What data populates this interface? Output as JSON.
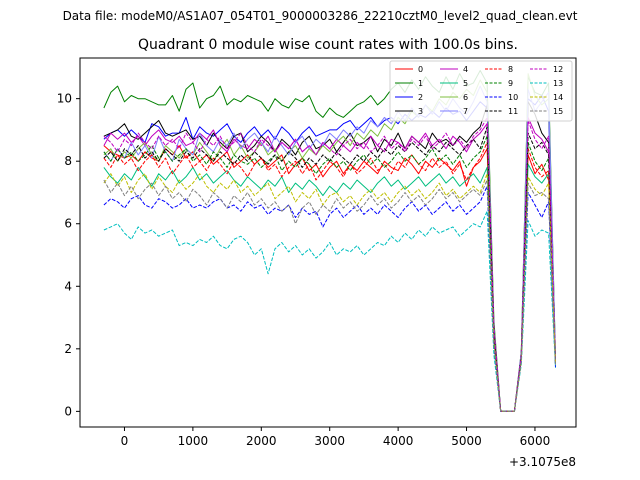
{
  "suptitle": "Data file: modeM0/AS1A07_054T01_9000003286_22210cztM0_level2_quad_clean.evt",
  "chart_data": {
    "type": "line",
    "title": "Quadrant 0 module wise count rates with 100.0s bins.",
    "xlabel": "",
    "ylabel": "",
    "x_offset_label": "+3.1075e8",
    "xlim": [
      -650,
      6600
    ],
    "ylim": [
      -0.5,
      11.3
    ],
    "xticks": [
      0,
      1000,
      2000,
      3000,
      4000,
      5000,
      6000
    ],
    "yticks": [
      0,
      2,
      4,
      6,
      8,
      10
    ],
    "legend_position": "top-right",
    "x": [
      -300,
      -200,
      -100,
      0,
      100,
      200,
      300,
      400,
      500,
      600,
      700,
      800,
      900,
      1000,
      1100,
      1200,
      1300,
      1400,
      1500,
      1600,
      1700,
      1800,
      1900,
      2000,
      2100,
      2200,
      2300,
      2400,
      2500,
      2600,
      2700,
      2800,
      2900,
      3000,
      3100,
      3200,
      3300,
      3400,
      3500,
      3600,
      3700,
      3800,
      3900,
      4000,
      4100,
      4200,
      4300,
      4400,
      4500,
      4600,
      4700,
      4800,
      4900,
      5000,
      5100,
      5200,
      5300,
      5400,
      5500,
      5600,
      5700,
      5800,
      5900,
      6000,
      6100,
      6200,
      6300
    ],
    "series": [
      {
        "name": "0",
        "color": "#ff0000",
        "dash": "solid",
        "values": [
          8.5,
          8.3,
          8.2,
          8.1,
          8.2,
          8.0,
          8.3,
          8.1,
          8.0,
          8.4,
          8.2,
          8.5,
          8.1,
          8.3,
          8.0,
          8.2,
          7.9,
          8.1,
          8.3,
          7.8,
          8.0,
          8.2,
          7.9,
          8.1,
          7.8,
          8.0,
          8.2,
          7.6,
          7.9,
          8.1,
          7.7,
          7.9,
          7.5,
          7.8,
          8.0,
          7.6,
          7.9,
          7.7,
          8.0,
          7.8,
          7.6,
          8.0,
          7.8,
          7.7,
          8.1,
          7.9,
          7.6,
          8.0,
          7.8,
          8.1,
          7.9,
          7.7,
          8.0,
          7.2,
          7.8,
          8.0,
          8.4,
          2.4,
          0.0,
          0.0,
          0.0,
          1.7,
          8.2,
          7.6,
          7.9,
          7.4,
          1.6
        ]
      },
      {
        "name": "1",
        "color": "#008000",
        "dash": "solid",
        "values": [
          9.7,
          10.2,
          10.4,
          9.9,
          10.1,
          10.0,
          10.0,
          9.9,
          9.8,
          9.8,
          10.1,
          9.6,
          10.3,
          10.5,
          9.7,
          10.0,
          10.1,
          10.4,
          9.8,
          10.0,
          9.9,
          10.1,
          10.0,
          9.9,
          9.6,
          10.0,
          9.8,
          9.7,
          10.0,
          9.9,
          10.1,
          9.6,
          9.4,
          9.7,
          9.5,
          9.4,
          9.6,
          9.8,
          9.9,
          10.1,
          9.8,
          10.0,
          10.3,
          10.5,
          10.2,
          10.6,
          10.3,
          10.7,
          10.4,
          10.2,
          10.7,
          10.3,
          10.8,
          10.4,
          10.5,
          10.9,
          10.5,
          2.9,
          0.0,
          0.0,
          0.0,
          1.9,
          10.7,
          10.2,
          10.1,
          10.5,
          1.7
        ]
      },
      {
        "name": "2",
        "color": "#0000ff",
        "dash": "solid",
        "values": [
          8.7,
          8.9,
          9.0,
          8.8,
          9.0,
          8.8,
          8.6,
          9.2,
          9.1,
          8.8,
          8.9,
          8.9,
          9.4,
          8.7,
          9.1,
          8.9,
          8.8,
          9.0,
          9.2,
          8.8,
          8.6,
          8.9,
          9.1,
          8.8,
          9.0,
          8.7,
          9.1,
          8.9,
          8.6,
          8.9,
          9.1,
          8.8,
          8.9,
          9.0,
          9.0,
          9.2,
          9.3,
          9.0,
          9.2,
          9.4,
          9.1,
          9.3,
          9.4,
          9.2,
          9.5,
          9.3,
          9.5,
          9.4,
          9.6,
          9.4,
          9.7,
          9.5,
          9.6,
          9.3,
          9.6,
          9.9,
          9.7,
          2.7,
          0.0,
          0.0,
          0.0,
          1.8,
          10.0,
          9.8,
          10.1,
          9.6,
          1.6
        ]
      },
      {
        "name": "3",
        "color": "#000000",
        "dash": "solid",
        "values": [
          8.8,
          8.9,
          9.0,
          9.2,
          8.8,
          8.7,
          8.9,
          9.1,
          9.3,
          8.9,
          8.8,
          8.9,
          9.0,
          8.7,
          8.8,
          8.5,
          8.9,
          8.6,
          8.4,
          8.8,
          8.9,
          8.3,
          8.5,
          8.8,
          8.6,
          8.3,
          8.7,
          8.5,
          8.2,
          8.6,
          8.8,
          8.4,
          8.5,
          8.7,
          8.3,
          8.6,
          8.9,
          8.5,
          8.6,
          8.8,
          8.3,
          8.7,
          8.5,
          8.9,
          8.4,
          8.8,
          8.6,
          8.4,
          8.9,
          8.6,
          8.7,
          8.5,
          8.8,
          8.6,
          8.9,
          9.1,
          9.8,
          2.6,
          0.0,
          0.0,
          0.0,
          1.8,
          9.9,
          9.5,
          8.9,
          8.6,
          1.6
        ]
      },
      {
        "name": "4",
        "color": "#bf00bf",
        "dash": "solid",
        "values": [
          8.5,
          8.9,
          8.7,
          8.9,
          8.6,
          8.8,
          8.5,
          8.8,
          9.0,
          8.7,
          8.6,
          8.8,
          8.5,
          8.6,
          8.9,
          8.7,
          9.0,
          8.5,
          8.3,
          8.7,
          8.5,
          8.4,
          8.7,
          8.5,
          8.8,
          8.3,
          8.6,
          8.4,
          8.7,
          8.3,
          8.5,
          8.2,
          8.6,
          8.4,
          8.7,
          8.5,
          8.3,
          8.6,
          8.4,
          8.8,
          8.5,
          8.3,
          8.7,
          8.6,
          8.4,
          8.8,
          8.6,
          8.9,
          8.5,
          8.7,
          8.4,
          8.8,
          8.6,
          8.3,
          8.7,
          8.9,
          9.2,
          2.6,
          0.0,
          0.0,
          0.0,
          1.8,
          9.4,
          8.9,
          8.7,
          8.3,
          1.6
        ]
      },
      {
        "name": "5",
        "color": "#00bf80",
        "dash": "solid",
        "values": [
          7.8,
          7.5,
          7.3,
          7.6,
          7.4,
          7.8,
          7.5,
          7.2,
          7.6,
          7.4,
          7.7,
          7.3,
          7.5,
          7.8,
          7.4,
          7.6,
          7.3,
          7.5,
          7.7,
          7.4,
          7.2,
          7.5,
          7.3,
          7.1,
          7.4,
          7.2,
          7.5,
          7.0,
          7.3,
          7.1,
          7.4,
          7.2,
          6.9,
          7.2,
          7.0,
          7.3,
          7.1,
          7.4,
          7.2,
          7.0,
          7.3,
          7.5,
          7.2,
          7.4,
          7.1,
          7.3,
          7.5,
          7.2,
          7.4,
          7.6,
          7.3,
          7.5,
          7.2,
          7.4,
          7.6,
          7.3,
          7.8,
          2.3,
          0.0,
          0.0,
          0.0,
          1.7,
          7.9,
          7.5,
          7.3,
          7.6,
          1.5
        ]
      },
      {
        "name": "6",
        "color": "#7fbf3f",
        "dash": "solid",
        "values": [
          8.2,
          8.4,
          8.0,
          8.3,
          8.1,
          8.4,
          8.6,
          8.2,
          8.0,
          8.5,
          8.3,
          8.1,
          8.4,
          8.2,
          8.6,
          8.3,
          8.0,
          8.4,
          8.7,
          8.2,
          8.5,
          8.1,
          8.3,
          8.6,
          8.2,
          8.4,
          8.0,
          8.3,
          8.5,
          8.1,
          8.4,
          8.2,
          8.5,
          8.3,
          8.6,
          8.8,
          8.5,
          8.9,
          8.7,
          9.0,
          8.8,
          9.2,
          9.0,
          9.4,
          9.2,
          9.6,
          9.4,
          9.8,
          9.6,
          10.0,
          9.8,
          10.2,
          10.0,
          10.3,
          10.1,
          10.6,
          10.2,
          2.8,
          0.0,
          0.0,
          0.0,
          1.9,
          10.8,
          10.1,
          9.8,
          10.0,
          1.7
        ]
      },
      {
        "name": "7",
        "color": "#8080ff",
        "dash": "solid",
        "values": [
          8.3,
          8.0,
          8.4,
          8.1,
          8.6,
          8.2,
          8.5,
          8.1,
          8.8,
          8.3,
          8.0,
          8.7,
          8.4,
          8.2,
          8.9,
          8.5,
          8.3,
          8.7,
          8.5,
          8.9,
          8.4,
          8.7,
          8.9,
          8.6,
          8.3,
          8.8,
          8.5,
          8.2,
          8.6,
          8.8,
          8.4,
          8.7,
          8.5,
          8.9,
          8.7,
          9.0,
          8.8,
          9.1,
          8.9,
          9.3,
          9.1,
          9.4,
          9.2,
          9.6,
          9.3,
          9.7,
          9.4,
          9.8,
          9.5,
          9.9,
          9.6,
          10.0,
          9.7,
          9.5,
          9.9,
          10.4,
          9.9,
          2.7,
          0.0,
          0.0,
          0.0,
          1.9,
          10.3,
          9.6,
          9.9,
          10.2,
          1.7
        ]
      },
      {
        "name": "8",
        "color": "#ff0000",
        "dash": "dashed",
        "values": [
          8.1,
          7.8,
          8.2,
          7.9,
          8.1,
          7.7,
          8.0,
          8.2,
          7.8,
          8.1,
          7.6,
          7.9,
          8.2,
          7.8,
          8.0,
          7.7,
          8.1,
          7.9,
          7.6,
          8.0,
          7.8,
          7.5,
          7.9,
          8.1,
          7.7,
          7.9,
          7.5,
          7.8,
          8.0,
          7.6,
          7.9,
          7.4,
          7.7,
          8.0,
          7.8,
          7.5,
          7.9,
          7.6,
          7.8,
          8.1,
          7.7,
          7.9,
          7.6,
          8.0,
          7.8,
          8.2,
          7.9,
          7.7,
          8.1,
          7.8,
          8.0,
          7.6,
          7.9,
          7.4,
          7.8,
          8.1,
          8.6,
          2.4,
          0.0,
          0.0,
          0.0,
          1.7,
          8.4,
          7.8,
          7.5,
          7.7,
          1.5
        ]
      },
      {
        "name": "9",
        "color": "#008000",
        "dash": "dashed",
        "values": [
          8.3,
          8.0,
          8.4,
          8.1,
          8.3,
          8.0,
          8.2,
          8.5,
          8.1,
          8.3,
          8.0,
          8.2,
          8.4,
          8.0,
          8.2,
          7.9,
          8.3,
          8.1,
          7.8,
          8.2,
          8.0,
          7.9,
          8.1,
          7.8,
          8.0,
          8.2,
          7.7,
          8.0,
          7.8,
          8.1,
          7.9,
          7.6,
          7.9,
          8.1,
          7.8,
          8.0,
          7.7,
          8.0,
          8.2,
          7.9,
          8.1,
          7.8,
          8.0,
          8.3,
          8.0,
          8.2,
          7.9,
          8.1,
          8.4,
          8.0,
          8.2,
          7.9,
          8.2,
          7.8,
          8.1,
          8.3,
          8.8,
          2.5,
          0.0,
          0.0,
          0.0,
          1.7,
          8.6,
          8.0,
          7.7,
          8.1,
          1.5
        ]
      },
      {
        "name": "10",
        "color": "#0000ff",
        "dash": "dashed",
        "values": [
          6.6,
          6.8,
          6.7,
          6.5,
          6.8,
          6.9,
          6.6,
          6.5,
          6.8,
          6.7,
          6.5,
          6.6,
          6.8,
          6.5,
          6.6,
          6.5,
          6.7,
          6.8,
          6.5,
          6.6,
          6.4,
          6.7,
          6.5,
          6.6,
          6.3,
          6.5,
          6.4,
          6.6,
          6.2,
          6.5,
          6.3,
          6.4,
          5.9,
          6.3,
          6.5,
          6.2,
          6.4,
          6.6,
          6.3,
          6.5,
          6.3,
          6.6,
          6.4,
          6.2,
          6.5,
          6.7,
          6.4,
          6.6,
          6.3,
          6.5,
          6.7,
          6.4,
          6.6,
          6.3,
          6.5,
          6.7,
          7.2,
          2.0,
          0.0,
          0.0,
          0.0,
          1.6,
          7.0,
          6.6,
          6.2,
          6.7,
          1.4
        ]
      },
      {
        "name": "11",
        "color": "#000000",
        "dash": "dashed",
        "values": [
          8.1,
          8.3,
          8.0,
          8.4,
          8.2,
          8.5,
          8.1,
          8.3,
          8.0,
          8.4,
          8.2,
          8.0,
          8.3,
          8.1,
          8.4,
          8.2,
          8.0,
          8.3,
          8.1,
          7.9,
          8.2,
          8.0,
          8.3,
          8.1,
          7.9,
          8.2,
          8.0,
          8.3,
          8.1,
          7.8,
          8.1,
          7.9,
          8.2,
          8.0,
          8.3,
          8.1,
          7.9,
          8.2,
          8.0,
          8.3,
          8.1,
          8.4,
          8.2,
          8.5,
          8.3,
          8.6,
          8.4,
          8.2,
          8.5,
          8.3,
          8.6,
          8.4,
          8.2,
          8.5,
          8.7,
          8.4,
          9.1,
          2.6,
          0.0,
          0.0,
          0.0,
          1.8,
          8.9,
          8.4,
          8.6,
          8.2,
          1.6
        ]
      },
      {
        "name": "12",
        "color": "#bf00bf",
        "dash": "dashed",
        "values": [
          8.8,
          8.6,
          8.3,
          8.7,
          8.5,
          8.9,
          8.6,
          8.4,
          8.8,
          8.5,
          8.7,
          8.4,
          8.9,
          8.6,
          8.3,
          8.7,
          8.5,
          8.8,
          8.4,
          8.6,
          8.9,
          8.5,
          8.3,
          8.7,
          8.5,
          8.3,
          8.6,
          8.4,
          8.7,
          8.3,
          8.5,
          8.2,
          8.6,
          8.4,
          8.2,
          8.5,
          8.7,
          8.4,
          8.6,
          8.3,
          8.5,
          8.8,
          8.4,
          8.6,
          8.3,
          8.7,
          8.5,
          8.8,
          8.4,
          8.6,
          8.9,
          8.5,
          8.7,
          8.4,
          8.8,
          9.0,
          9.4,
          2.7,
          0.0,
          0.0,
          0.0,
          1.8,
          9.3,
          8.7,
          8.4,
          8.8,
          1.6
        ]
      },
      {
        "name": "13",
        "color": "#00bfbf",
        "dash": "dashed",
        "values": [
          5.8,
          5.9,
          6.0,
          5.7,
          5.5,
          5.9,
          5.7,
          5.8,
          5.6,
          5.7,
          5.8,
          5.3,
          5.4,
          5.3,
          5.5,
          5.4,
          5.6,
          5.3,
          5.2,
          5.5,
          5.6,
          5.4,
          5.0,
          5.2,
          4.4,
          5.2,
          5.4,
          5.1,
          5.3,
          5.0,
          5.2,
          4.9,
          5.1,
          5.4,
          5.0,
          5.2,
          5.1,
          5.3,
          5.0,
          5.2,
          5.4,
          5.3,
          5.6,
          5.4,
          5.7,
          5.5,
          5.8,
          5.6,
          5.9,
          5.7,
          5.8,
          5.9,
          5.6,
          5.8,
          6.0,
          5.9,
          6.4,
          1.8,
          0.0,
          0.0,
          0.0,
          1.5,
          6.1,
          5.6,
          5.8,
          5.7,
          1.4
        ]
      },
      {
        "name": "14",
        "color": "#bfbf00",
        "dash": "dashed",
        "values": [
          7.3,
          7.6,
          7.2,
          7.5,
          7.0,
          7.4,
          7.6,
          7.1,
          7.5,
          7.2,
          7.0,
          7.4,
          7.1,
          7.3,
          7.6,
          7.2,
          7.0,
          7.3,
          7.1,
          7.4,
          7.0,
          7.2,
          6.9,
          7.1,
          7.3,
          6.8,
          7.0,
          7.2,
          6.7,
          7.0,
          6.8,
          7.1,
          6.6,
          6.9,
          7.0,
          6.7,
          6.9,
          6.6,
          6.9,
          7.1,
          6.8,
          7.0,
          6.7,
          7.0,
          7.2,
          6.9,
          7.1,
          6.8,
          7.0,
          7.3,
          6.9,
          7.1,
          6.8,
          7.0,
          7.2,
          7.0,
          7.6,
          2.2,
          0.0,
          0.0,
          0.0,
          1.6,
          7.5,
          7.1,
          6.9,
          7.3,
          1.5
        ]
      },
      {
        "name": "15",
        "color": "#808080",
        "dash": "dashed",
        "values": [
          7.4,
          7.0,
          7.3,
          6.9,
          7.2,
          6.8,
          7.1,
          7.3,
          6.9,
          7.2,
          6.8,
          7.0,
          6.7,
          7.1,
          6.9,
          6.6,
          7.0,
          6.8,
          6.5,
          6.9,
          6.7,
          7.0,
          6.6,
          6.8,
          6.5,
          6.7,
          6.4,
          6.6,
          6.0,
          6.5,
          6.7,
          6.3,
          6.6,
          6.4,
          6.8,
          6.5,
          6.7,
          6.4,
          6.6,
          6.9,
          6.6,
          6.8,
          6.5,
          6.7,
          7.0,
          6.7,
          6.9,
          6.6,
          6.8,
          7.1,
          6.8,
          7.0,
          6.7,
          6.9,
          7.1,
          6.9,
          7.4,
          2.1,
          0.0,
          0.0,
          0.0,
          1.6,
          7.3,
          6.9,
          7.0,
          6.8,
          1.5
        ]
      }
    ]
  }
}
